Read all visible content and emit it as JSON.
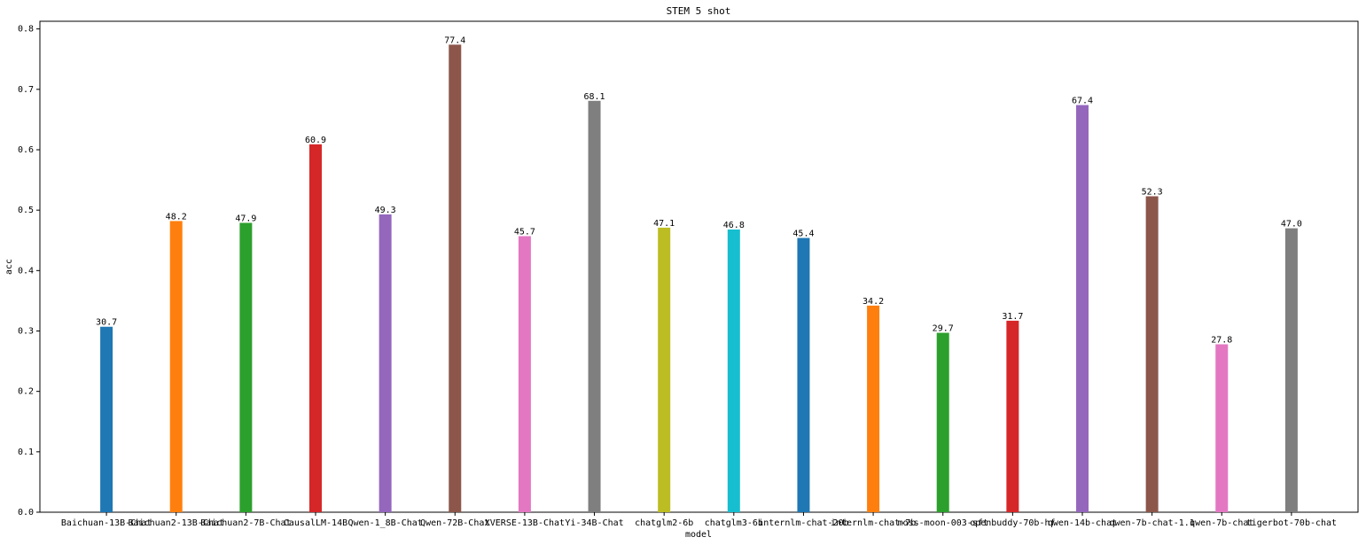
{
  "chart_data": {
    "type": "bar",
    "title": "STEM 5 shot",
    "x_label": "model",
    "y_label": "acc",
    "categories": [
      "Baichuan-13B-Chat",
      "Baichuan2-13B-Chat",
      "Baichuan2-7B-Chat",
      "CausalLM-14B",
      "Qwen-1_8B-Chat",
      "Qwen-72B-Chat",
      "XVERSE-13B-Chat",
      "Yi-34B-Chat",
      "chatglm2-6b",
      "chatglm3-6b",
      "internlm-chat-20b",
      "internlm-chat-7b",
      "moss-moon-003-sft",
      "openbuddy-70b-hf",
      "qwen-14b-chat",
      "qwen-7b-chat-1.1",
      "qwen-7b-chat",
      "tigerbot-70b-chat"
    ],
    "values": [
      0.307,
      0.482,
      0.479,
      0.609,
      0.493,
      0.774,
      0.457,
      0.681,
      0.471,
      0.468,
      0.454,
      0.342,
      0.297,
      0.317,
      0.674,
      0.523,
      0.278,
      0.47
    ],
    "value_labels": [
      "30.7",
      "48.2",
      "47.9",
      "60.9",
      "49.3",
      "77.4",
      "45.7",
      "68.1",
      "47.1",
      "46.8",
      "45.4",
      "34.2",
      "29.7",
      "31.7",
      "67.4",
      "52.3",
      "27.8",
      "47.0"
    ],
    "colors": [
      "#1f77b4",
      "#ff7f0e",
      "#2ca02c",
      "#d62728",
      "#9467bd",
      "#8c564b",
      "#e377c2",
      "#7f7f7f",
      "#bcbd22",
      "#17becf",
      "#1f77b4",
      "#ff7f0e",
      "#2ca02c",
      "#d62728",
      "#9467bd",
      "#8c564b",
      "#e377c2",
      "#7f7f7f"
    ],
    "ylim": [
      0,
      0.8127
    ],
    "yticks": [
      {
        "value": 0,
        "label": "0.0"
      },
      0.1,
      0.2,
      0.3,
      0.4,
      0.5,
      0.6,
      0.7,
      0.8
    ]
  }
}
